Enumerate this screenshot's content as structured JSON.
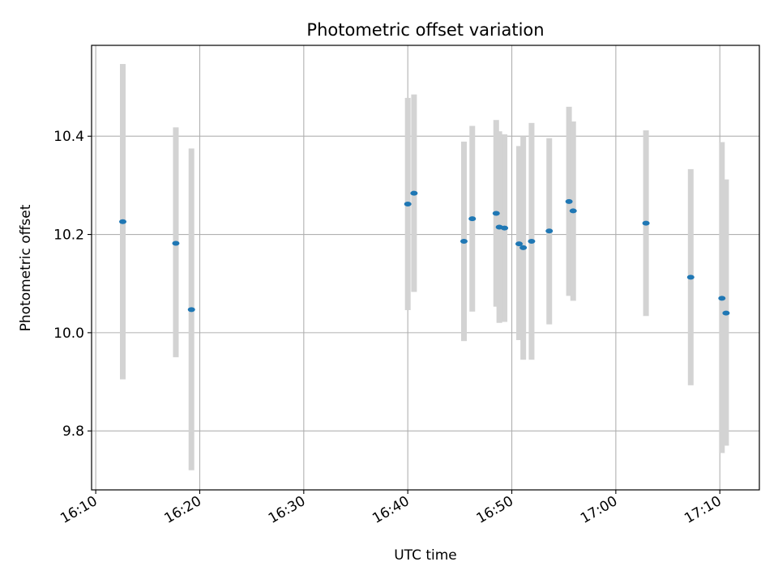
{
  "chart_data": {
    "type": "scatter",
    "title": "Photometric offset variation",
    "xlabel": "UTC time",
    "ylabel": "Photometric offset",
    "x_ticks": [
      "16:10",
      "16:20",
      "16:30",
      "16:40",
      "16:50",
      "17:00",
      "17:10"
    ],
    "y_ticks": [
      "9.8",
      "10.0",
      "10.2",
      "10.4"
    ],
    "y_tick_values": [
      9.8,
      10.0,
      10.2,
      10.4
    ],
    "xlim": [
      "16:09.6",
      "17:13.8"
    ],
    "ylim": [
      9.68,
      10.585
    ],
    "grid": true,
    "legend": "none",
    "point_color": "#1f77b4",
    "errorbar_color": "#d3d3d3",
    "points": [
      {
        "x": "16:12.6",
        "y": 10.226,
        "low": 9.905,
        "high": 10.547
      },
      {
        "x": "16:17.7",
        "y": 10.182,
        "low": 9.95,
        "high": 10.418
      },
      {
        "x": "16:19.2",
        "y": 10.047,
        "low": 9.72,
        "high": 10.375
      },
      {
        "x": "16:40.0",
        "y": 10.262,
        "low": 10.046,
        "high": 10.478
      },
      {
        "x": "16:40.6",
        "y": 10.284,
        "low": 10.083,
        "high": 10.485
      },
      {
        "x": "16:45.4",
        "y": 10.186,
        "low": 9.983,
        "high": 10.389
      },
      {
        "x": "16:46.2",
        "y": 10.232,
        "low": 10.043,
        "high": 10.421
      },
      {
        "x": "16:48.5",
        "y": 10.243,
        "low": 10.053,
        "high": 10.433
      },
      {
        "x": "16:48.8",
        "y": 10.215,
        "low": 10.02,
        "high": 10.41
      },
      {
        "x": "16:49.3",
        "y": 10.213,
        "low": 10.022,
        "high": 10.404
      },
      {
        "x": "16:50.7",
        "y": 10.181,
        "low": 9.985,
        "high": 10.38
      },
      {
        "x": "16:51.1",
        "y": 10.173,
        "low": 9.945,
        "high": 10.4
      },
      {
        "x": "16:51.9",
        "y": 10.186,
        "low": 9.945,
        "high": 10.427
      },
      {
        "x": "16:53.6",
        "y": 10.207,
        "low": 10.017,
        "high": 10.396
      },
      {
        "x": "16:55.5",
        "y": 10.267,
        "low": 10.075,
        "high": 10.46
      },
      {
        "x": "16:55.9",
        "y": 10.248,
        "low": 10.065,
        "high": 10.43
      },
      {
        "x": "17:02.9",
        "y": 10.223,
        "low": 10.034,
        "high": 10.412
      },
      {
        "x": "17:07.2",
        "y": 10.113,
        "low": 9.893,
        "high": 10.333
      },
      {
        "x": "17:10.2",
        "y": 10.07,
        "low": 9.755,
        "high": 10.388
      },
      {
        "x": "17:10.6",
        "y": 10.04,
        "low": 9.77,
        "high": 10.312
      }
    ]
  }
}
